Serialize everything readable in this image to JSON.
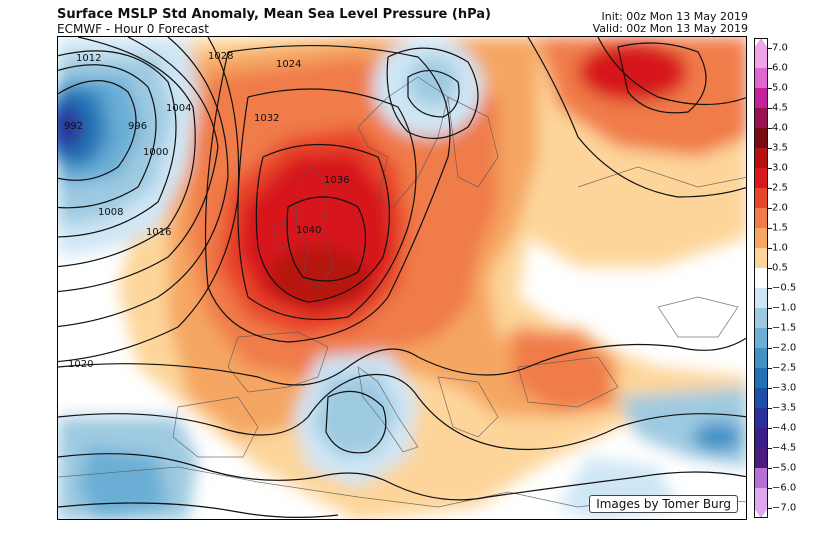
{
  "header": {
    "title": "Surface MSLP Std Anomaly,  Mean Sea Level Pressure (hPa)",
    "subtitle": "ECMWF - Hour 0 Forecast",
    "init": "Init: 00z Mon 13 May 2019",
    "valid": "Valid: 00z Mon 13 May 2019"
  },
  "map": {
    "credit": "Images by Tomer Burg",
    "isobar_labels": [
      "992",
      "996",
      "1000",
      "1004",
      "1008",
      "1012",
      "1016",
      "1020",
      "1024",
      "1028",
      "1032",
      "1036",
      "1040"
    ],
    "colors": {
      "strong_positive": "#d7191c",
      "positive": "#f07c4a",
      "weak_positive": "#fdd59a",
      "neutral": "#ffffff",
      "weak_negative": "#9ecae1",
      "negative": "#4292c6",
      "strong_negative": "#23107a"
    }
  },
  "colorbar": {
    "labels": [
      "7.0",
      "6.0",
      "5.0",
      "4.5",
      "4.0",
      "3.5",
      "3.0",
      "2.5",
      "2.0",
      "1.5",
      "1.0",
      "0.5",
      "−0.5",
      "−1.0",
      "−1.5",
      "−2.0",
      "−2.5",
      "−3.0",
      "−3.5",
      "−4.0",
      "−4.5",
      "−5.0",
      "−6.0",
      "−7.0"
    ],
    "colors": [
      "#f0a5e6",
      "#e066d0",
      "#c4219e",
      "#98124f",
      "#7a0a14",
      "#b5120f",
      "#d7191c",
      "#e8452b",
      "#f07c4a",
      "#f5a662",
      "#fdd59a",
      "#ffffff",
      "#cfe6f5",
      "#9ecae1",
      "#6baed6",
      "#4292c6",
      "#2171b5",
      "#1f4ea8",
      "#2b2f9a",
      "#3a1f8a",
      "#4b1b7e",
      "#b86fd6",
      "#e0a8ee"
    ]
  }
}
